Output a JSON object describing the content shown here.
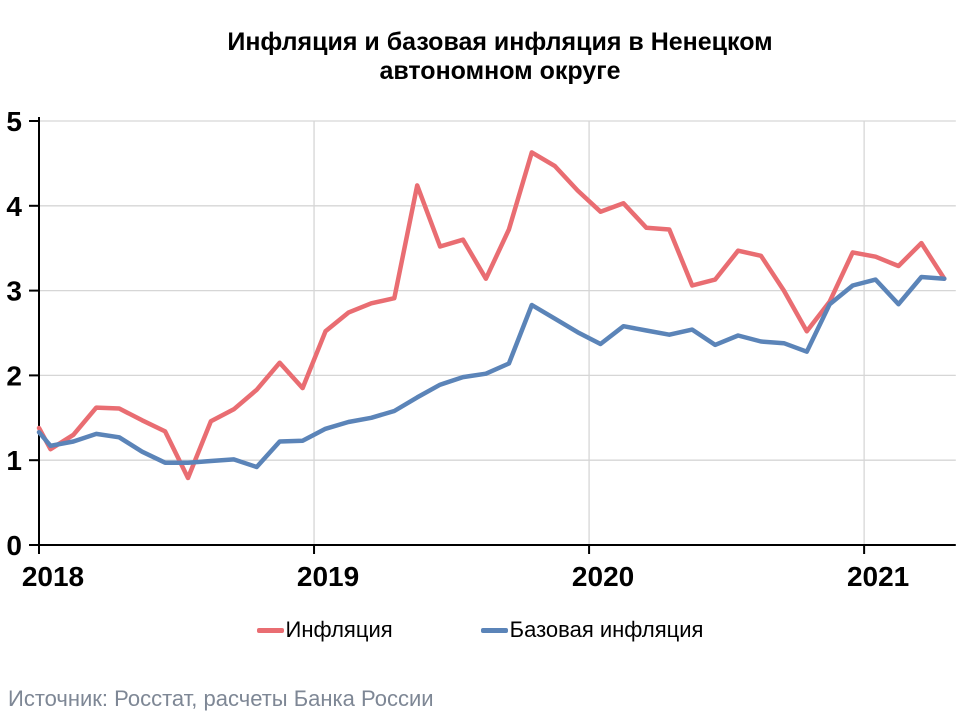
{
  "chart_data": {
    "type": "line",
    "title_lines": [
      "Инфляция и базовая инфляция в Ненецком",
      "автономном округе"
    ],
    "title": "Инфляция и базовая инфляция в Ненецком автономном округе",
    "source": "Источник: Росстат, расчеты Банка России",
    "ylim": [
      0,
      5
    ],
    "y_ticks": [
      "0",
      "1",
      "2",
      "3",
      "4",
      "5"
    ],
    "year_labels": [
      "2018",
      "2019",
      "2020",
      "2021"
    ],
    "grid_on": true,
    "legend_position": "bottom",
    "months": [
      "2018-01",
      "2018-02",
      "2018-03",
      "2018-04",
      "2018-05",
      "2018-06",
      "2018-07",
      "2018-08",
      "2018-09",
      "2018-10",
      "2018-11",
      "2018-12",
      "2019-01",
      "2019-02",
      "2019-03",
      "2019-04",
      "2019-05",
      "2019-06",
      "2019-07",
      "2019-08",
      "2019-09",
      "2019-10",
      "2019-11",
      "2019-12",
      "2020-01",
      "2020-02",
      "2020-03",
      "2020-04",
      "2020-05",
      "2020-06",
      "2020-07",
      "2020-08",
      "2020-09",
      "2020-10",
      "2020-11",
      "2020-12",
      "2021-01",
      "2021-02",
      "2021-03",
      "2021-04"
    ],
    "series": [
      {
        "name": "Инфляция",
        "color": "#E96D72",
        "axis_edge_start": 1.38,
        "values": [
          1.13,
          1.3,
          1.62,
          1.61,
          1.47,
          1.34,
          0.79,
          1.46,
          1.6,
          1.83,
          2.15,
          1.85,
          2.52,
          2.74,
          2.85,
          2.91,
          4.24,
          3.52,
          3.6,
          3.14,
          3.72,
          4.63,
          4.47,
          4.18,
          3.93,
          4.03,
          3.74,
          3.72,
          3.06,
          3.13,
          3.47,
          3.41,
          3.0,
          2.52,
          2.87,
          3.45,
          3.4,
          3.29,
          3.56,
          3.14
        ]
      },
      {
        "name": "Базовая инфляция",
        "color": "#5B84B8",
        "axis_edge_start": 1.33,
        "values": [
          1.17,
          1.22,
          1.31,
          1.27,
          1.1,
          0.97,
          0.97,
          0.99,
          1.01,
          0.92,
          1.22,
          1.23,
          1.37,
          1.45,
          1.5,
          1.58,
          1.74,
          1.89,
          1.98,
          2.02,
          2.14,
          2.83,
          2.67,
          2.51,
          2.37,
          2.58,
          2.53,
          2.48,
          2.54,
          2.36,
          2.47,
          2.4,
          2.38,
          2.28,
          2.84,
          3.06,
          3.13,
          2.84,
          3.16,
          3.14
        ]
      }
    ],
    "colors": {
      "grid": "#D6D6D6",
      "axis": "#000000",
      "tick_label": "#000000",
      "source_text": "#7E8795"
    }
  }
}
